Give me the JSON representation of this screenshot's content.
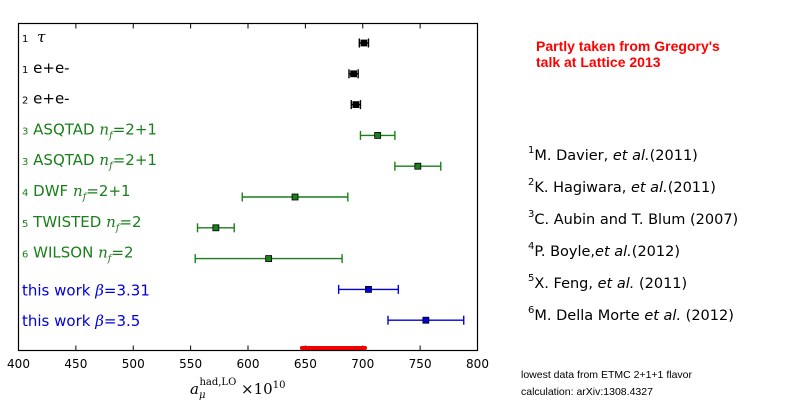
{
  "note": {
    "line1": "Partly taken from Gregory's",
    "line2": "talk at Lattice 2013"
  },
  "references": [
    {
      "num": "1",
      "pre": "M. Davier, ",
      "em": "et al.",
      "post": "(2011)"
    },
    {
      "num": "2",
      "pre": "K. Hagiwara, ",
      "em": "et al.",
      "post": "(2011)"
    },
    {
      "num": "3",
      "pre": "C. Aubin and T. Blum (2007)",
      "em": "",
      "post": ""
    },
    {
      "num": "4",
      "pre": "P. Boyle,",
      "em": "et al.",
      "post": "(2012)"
    },
    {
      "num": "5",
      "pre": "X. Feng, ",
      "em": "et al.",
      "post": " (2011)"
    },
    {
      "num": "6",
      "pre": "M. Della Morte ",
      "em": "et al.",
      "post": " (2012)"
    }
  ],
  "footnote": {
    "line1": "lowest data from ETMC 2+1+1 flavor",
    "line2": "calculation: arXiv:1308.4327"
  },
  "colors": {
    "black": "#000000",
    "green": "#1a7f1a",
    "blue": "#0000dd",
    "red": "#ee0000",
    "note": "#ff0000"
  },
  "chart_data": {
    "type": "scatter",
    "orientation": "horizontal error bars",
    "xlim": [
      400,
      800
    ],
    "xticks": [
      400,
      450,
      500,
      550,
      600,
      650,
      700,
      750,
      800
    ],
    "xlabel": {
      "base": "a",
      "sub": "μ",
      "sup": "had,LO",
      "factor": "×10",
      "factor_exp": "10"
    },
    "grid": false,
    "points": [
      {
        "ref": "1",
        "label": "τ",
        "math": true,
        "nf": "",
        "color": "black",
        "x": 701,
        "err": 4
      },
      {
        "ref": "1",
        "label": "e+e-",
        "math": false,
        "nf": "",
        "color": "black",
        "x": 692,
        "err": 4
      },
      {
        "ref": "2",
        "label": "e+e-",
        "math": false,
        "nf": "",
        "color": "black",
        "x": 694,
        "err": 4
      },
      {
        "ref": "3",
        "label": "ASQTAD",
        "math": false,
        "nf": "=2+1",
        "color": "green",
        "x": 713,
        "err": 15
      },
      {
        "ref": "3",
        "label": "ASQTAD",
        "math": false,
        "nf": "=2+1",
        "color": "green",
        "x": 748,
        "err": 20
      },
      {
        "ref": "4",
        "label": "DWF",
        "math": false,
        "nf": "=2+1",
        "color": "green",
        "x": 641,
        "err": 46
      },
      {
        "ref": "5",
        "label": "TWISTED",
        "math": false,
        "nf": "=2",
        "color": "green",
        "x": 572,
        "err": 16
      },
      {
        "ref": "6",
        "label": "WILSON",
        "math": false,
        "nf": "=2",
        "color": "green",
        "x": 618,
        "err": 64
      },
      {
        "ref": "",
        "label": "this work",
        "beta": "3.31",
        "color": "blue",
        "x": 705,
        "err": 26
      },
      {
        "ref": "",
        "label": "this work",
        "beta": "3.5",
        "color": "blue",
        "x": 755,
        "err": 33
      }
    ],
    "band": {
      "color": "red",
      "xmin": 647,
      "xmax": 702
    }
  }
}
